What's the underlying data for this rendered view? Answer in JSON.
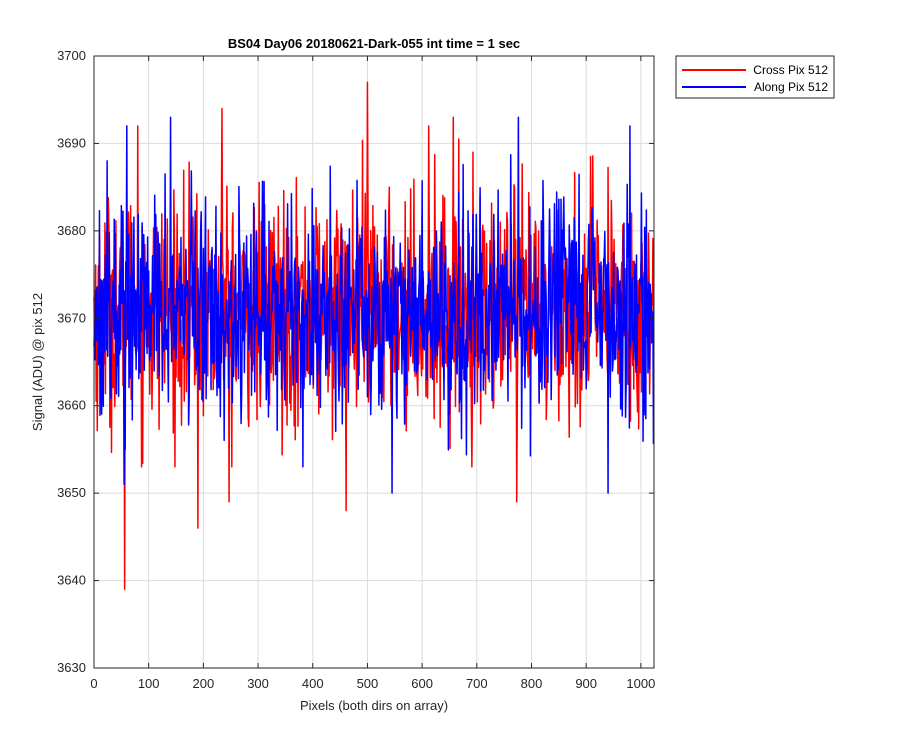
{
  "chart_data": {
    "type": "line",
    "title": "BS04 Day06 20180621-Dark-055 int time = 1 sec",
    "xlabel": "Pixels (both dirs on array)",
    "ylabel": "Signal (ADU) @ pix 512",
    "xlim": [
      0,
      1024
    ],
    "ylim": [
      3630,
      3700
    ],
    "xticks": [
      0,
      100,
      200,
      300,
      400,
      500,
      600,
      700,
      800,
      900,
      1000
    ],
    "yticks": [
      3630,
      3640,
      3650,
      3660,
      3670,
      3680,
      3690,
      3700
    ],
    "grid": true,
    "legend_position": "outside-top-right",
    "series": [
      {
        "name": "Cross Pix 512",
        "color": "#ff0000",
        "x_range": [
          0,
          1023
        ],
        "mean": 3671,
        "noise_std": 6.5,
        "notable_points": [
          {
            "x": 56,
            "y": 3639
          },
          {
            "x": 190,
            "y": 3646
          },
          {
            "x": 461,
            "y": 3648
          },
          {
            "x": 773,
            "y": 3649
          },
          {
            "x": 247,
            "y": 3649
          },
          {
            "x": 500,
            "y": 3697
          },
          {
            "x": 234,
            "y": 3694
          },
          {
            "x": 80,
            "y": 3692
          },
          {
            "x": 612,
            "y": 3692
          },
          {
            "x": 657,
            "y": 3693
          }
        ]
      },
      {
        "name": "Along Pix 512",
        "color": "#0000ff",
        "x_range": [
          0,
          1023
        ],
        "mean": 3671,
        "noise_std": 6.0,
        "notable_points": [
          {
            "x": 55,
            "y": 3651
          },
          {
            "x": 545,
            "y": 3650
          },
          {
            "x": 940,
            "y": 3650
          },
          {
            "x": 60,
            "y": 3692
          },
          {
            "x": 140,
            "y": 3693
          },
          {
            "x": 776,
            "y": 3693
          },
          {
            "x": 980,
            "y": 3692
          },
          {
            "x": 24,
            "y": 3688
          }
        ]
      }
    ]
  }
}
